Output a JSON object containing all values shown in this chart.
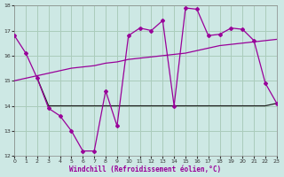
{
  "background_color": "#cde8e4",
  "grid_color": "#aaccbb",
  "line_color": "#990099",
  "line2_color": "#222222",
  "xlabel": "Windchill (Refroidissement éolien,°C)",
  "xlabel_color": "#990099",
  "ylim": [
    12,
    18
  ],
  "xlim": [
    0,
    23
  ],
  "yticks": [
    12,
    13,
    14,
    15,
    16,
    17,
    18
  ],
  "xticks": [
    0,
    1,
    2,
    3,
    4,
    5,
    6,
    7,
    8,
    9,
    10,
    11,
    12,
    13,
    14,
    15,
    16,
    17,
    18,
    19,
    20,
    21,
    22,
    23
  ],
  "line1_x": [
    0,
    1,
    2,
    3,
    4,
    5,
    6,
    7,
    8,
    9,
    10,
    11,
    12,
    13,
    14,
    15,
    16,
    17,
    18,
    19,
    20,
    21,
    22,
    23
  ],
  "line1_y": [
    16.8,
    16.1,
    15.1,
    13.9,
    13.6,
    13.0,
    12.2,
    12.2,
    14.6,
    13.2,
    16.8,
    17.1,
    17.0,
    17.4,
    14.0,
    17.9,
    17.85,
    16.8,
    16.85,
    17.1,
    17.05,
    16.6,
    14.9,
    14.1
  ],
  "line2_x": [
    2,
    3,
    4,
    5,
    6,
    7,
    8,
    9,
    10,
    11,
    12,
    13,
    14,
    15,
    16,
    17,
    18,
    19,
    20,
    21,
    22,
    23
  ],
  "line2_y": [
    15.1,
    14.0,
    14.0,
    14.0,
    14.0,
    14.0,
    14.0,
    14.0,
    14.0,
    14.0,
    14.0,
    14.0,
    14.0,
    14.0,
    14.0,
    14.0,
    14.0,
    14.0,
    14.0,
    14.0,
    14.0,
    14.1
  ],
  "line3_x": [
    0,
    1,
    2,
    3,
    4,
    5,
    6,
    7,
    8,
    9,
    10,
    11,
    12,
    13,
    14,
    15,
    16,
    17,
    18,
    19,
    20,
    21,
    22,
    23
  ],
  "line3_y": [
    15.0,
    15.1,
    15.2,
    15.3,
    15.4,
    15.5,
    15.55,
    15.6,
    15.7,
    15.75,
    15.85,
    15.9,
    15.95,
    16.0,
    16.05,
    16.1,
    16.2,
    16.3,
    16.4,
    16.45,
    16.5,
    16.55,
    16.6,
    16.65
  ]
}
